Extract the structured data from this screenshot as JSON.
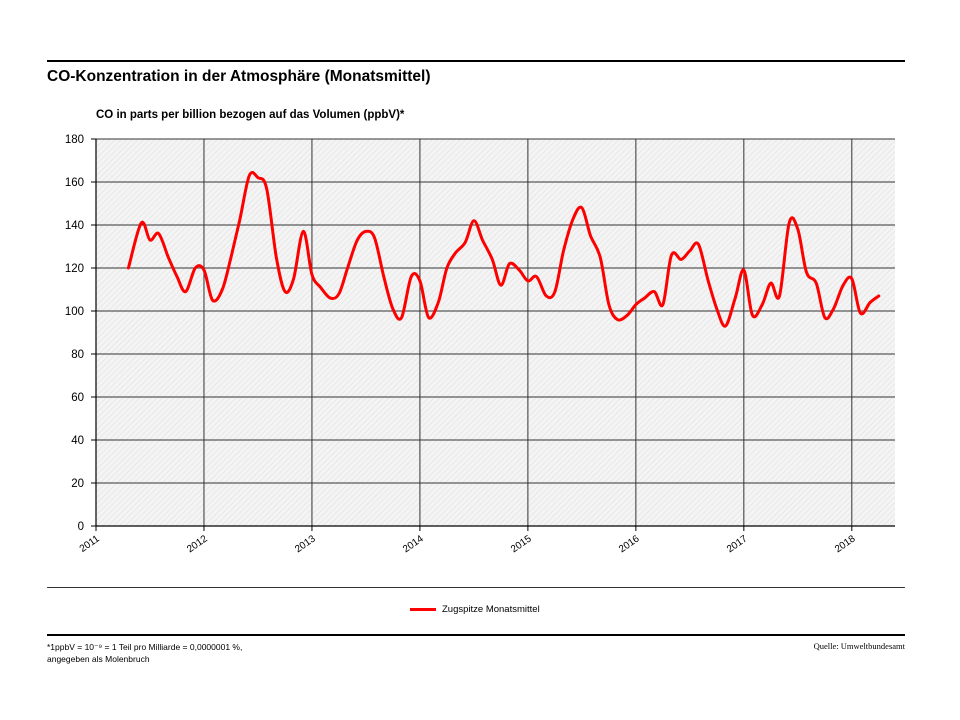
{
  "header": {
    "title": "CO-Konzentration in der Atmosphäre (Monatsmittel)"
  },
  "footer": {
    "footnote_line1": "*1ppbV = 10⁻⁹ = 1 Teil pro Milliarde = 0,0000001 %,",
    "footnote_line2": "angegeben als Molenbruch",
    "source": "Quelle: Umweltbundesamt"
  },
  "chart_data": {
    "type": "line",
    "title": "CO-Konzentration in der Atmosphäre (Monatsmittel)",
    "ylabel": "CO  in parts per billion bezogen auf das Volumen (ppbV)*",
    "xlabel": "",
    "xlim": [
      2011,
      2018.4
    ],
    "ylim": [
      0,
      180
    ],
    "yticks": [
      0,
      20,
      40,
      60,
      80,
      100,
      120,
      140,
      160,
      180
    ],
    "xticks": [
      "2011",
      "2012",
      "2013",
      "2014",
      "2015",
      "2016",
      "2017",
      "2018"
    ],
    "grid": true,
    "legend_position": "bottom-center",
    "series": [
      {
        "name": "Zugspitze Monatsmittel",
        "color": "#ff0000",
        "points": [
          [
            2011.3,
            120
          ],
          [
            2011.42,
            141
          ],
          [
            2011.5,
            133
          ],
          [
            2011.58,
            136
          ],
          [
            2011.67,
            125
          ],
          [
            2011.75,
            116
          ],
          [
            2011.83,
            109
          ],
          [
            2011.92,
            120
          ],
          [
            2012.0,
            119
          ],
          [
            2012.08,
            105
          ],
          [
            2012.17,
            110
          ],
          [
            2012.25,
            125
          ],
          [
            2012.33,
            142
          ],
          [
            2012.42,
            163
          ],
          [
            2012.5,
            162
          ],
          [
            2012.58,
            157
          ],
          [
            2012.67,
            125
          ],
          [
            2012.75,
            109
          ],
          [
            2012.83,
            115
          ],
          [
            2012.92,
            137
          ],
          [
            2013.0,
            117
          ],
          [
            2013.08,
            111
          ],
          [
            2013.17,
            106
          ],
          [
            2013.25,
            108
          ],
          [
            2013.33,
            120
          ],
          [
            2013.42,
            133
          ],
          [
            2013.5,
            137
          ],
          [
            2013.58,
            134
          ],
          [
            2013.67,
            115
          ],
          [
            2013.75,
            101
          ],
          [
            2013.83,
            97
          ],
          [
            2013.92,
            116
          ],
          [
            2014.0,
            114
          ],
          [
            2014.08,
            97
          ],
          [
            2014.17,
            104
          ],
          [
            2014.25,
            120
          ],
          [
            2014.33,
            127
          ],
          [
            2014.42,
            132
          ],
          [
            2014.5,
            142
          ],
          [
            2014.58,
            133
          ],
          [
            2014.67,
            124
          ],
          [
            2014.75,
            112
          ],
          [
            2014.83,
            122
          ],
          [
            2014.92,
            119
          ],
          [
            2015.0,
            114
          ],
          [
            2015.08,
            116
          ],
          [
            2015.17,
            107
          ],
          [
            2015.25,
            109
          ],
          [
            2015.33,
            128
          ],
          [
            2015.42,
            143
          ],
          [
            2015.5,
            148
          ],
          [
            2015.58,
            135
          ],
          [
            2015.67,
            125
          ],
          [
            2015.75,
            103
          ],
          [
            2015.83,
            96
          ],
          [
            2015.92,
            98
          ],
          [
            2016.0,
            103
          ],
          [
            2016.08,
            106
          ],
          [
            2016.17,
            109
          ],
          [
            2016.25,
            103
          ],
          [
            2016.33,
            126
          ],
          [
            2016.42,
            124
          ],
          [
            2016.5,
            128
          ],
          [
            2016.58,
            131
          ],
          [
            2016.67,
            114
          ],
          [
            2016.75,
            101
          ],
          [
            2016.83,
            93
          ],
          [
            2016.92,
            106
          ],
          [
            2017.0,
            119
          ],
          [
            2017.08,
            98
          ],
          [
            2017.17,
            103
          ],
          [
            2017.25,
            113
          ],
          [
            2017.33,
            107
          ],
          [
            2017.42,
            141
          ],
          [
            2017.5,
            138
          ],
          [
            2017.58,
            118
          ],
          [
            2017.67,
            113
          ],
          [
            2017.75,
            97
          ],
          [
            2017.83,
            101
          ],
          [
            2017.92,
            112
          ],
          [
            2018.0,
            115
          ],
          [
            2018.08,
            99
          ],
          [
            2018.17,
            104
          ],
          [
            2018.25,
            107
          ]
        ]
      }
    ]
  }
}
